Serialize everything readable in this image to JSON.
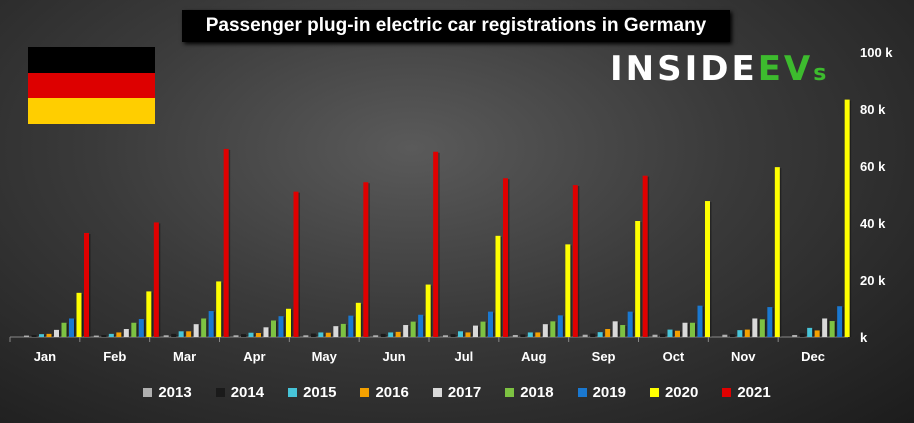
{
  "brand": {
    "name_main": "INSIDE",
    "name_accent": "EV",
    "name_tail": "s"
  },
  "flag": {
    "colors": [
      "#000000",
      "#dd0000",
      "#ffce00"
    ]
  },
  "chart_data": {
    "type": "bar",
    "title": "Passenger plug-in electric car registrations in Germany",
    "categories": [
      "Jan",
      "Feb",
      "Mar",
      "Apr",
      "May",
      "Jun",
      "Jul",
      "Aug",
      "Sep",
      "Oct",
      "Nov",
      "Dec"
    ],
    "y_ticks": [
      "k",
      "20 k",
      "40 k",
      "60 k",
      "80 k",
      "100 k"
    ],
    "ylim": [
      0,
      100
    ],
    "y_unit": "k",
    "grid": false,
    "legend_position": "bottom",
    "series": [
      {
        "name": "2013",
        "color": "#b0b0b0",
        "values": [
          0.5,
          0.5,
          0.6,
          0.6,
          0.6,
          0.6,
          0.6,
          0.7,
          0.8,
          0.8,
          0.8,
          0.7
        ]
      },
      {
        "name": "2014",
        "color": "#1a1a1a",
        "values": [
          0.7,
          0.7,
          1.1,
          1.0,
          1.2,
          1.1,
          1.0,
          0.9,
          1.2,
          1.2,
          1.0,
          1.3
        ]
      },
      {
        "name": "2015",
        "color": "#47c4d8",
        "values": [
          1.0,
          1.1,
          2.0,
          1.5,
          1.6,
          1.6,
          2.0,
          1.6,
          1.7,
          2.6,
          2.4,
          3.2
        ]
      },
      {
        "name": "2016",
        "color": "#f3a000",
        "values": [
          1.1,
          1.6,
          2.0,
          1.4,
          1.5,
          1.8,
          1.6,
          1.6,
          2.8,
          2.2,
          2.6,
          2.3
        ]
      },
      {
        "name": "2017",
        "color": "#d9d9d9",
        "values": [
          2.5,
          2.8,
          4.5,
          3.4,
          3.8,
          4.2,
          4.0,
          4.5,
          5.5,
          5.0,
          6.5,
          6.5
        ]
      },
      {
        "name": "2018",
        "color": "#7dc242",
        "values": [
          5.0,
          5.0,
          6.5,
          5.8,
          4.6,
          5.4,
          5.4,
          5.5,
          4.2,
          5.0,
          6.2,
          5.6
        ]
      },
      {
        "name": "2019",
        "color": "#1a78d0",
        "values": [
          6.5,
          6.3,
          9.1,
          7.3,
          7.5,
          7.8,
          8.9,
          7.6,
          8.9,
          11.0,
          10.5,
          10.8
        ]
      },
      {
        "name": "2020",
        "color": "#ffff00",
        "values": [
          15.5,
          16.0,
          19.5,
          9.9,
          12.0,
          18.4,
          35.5,
          32.5,
          40.7,
          47.7,
          59.6,
          83.3
        ]
      },
      {
        "name": "2021",
        "color": "#e00000",
        "values": [
          36.5,
          40.2,
          66.0,
          51.0,
          54.3,
          65.0,
          55.7,
          53.3,
          56.6,
          null,
          null,
          null
        ]
      }
    ]
  }
}
